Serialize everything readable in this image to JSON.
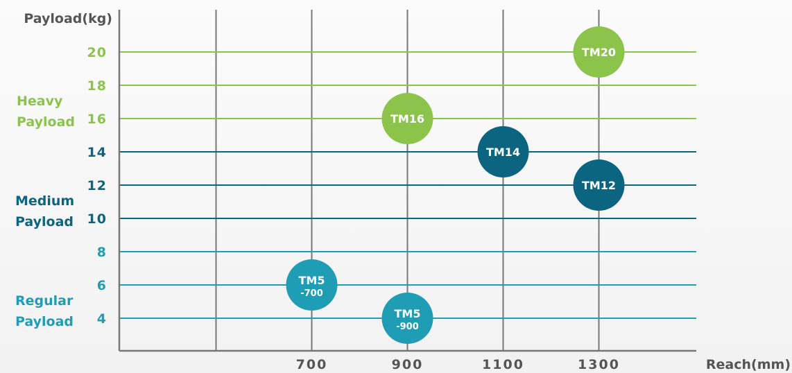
{
  "chart_data": {
    "type": "scatter",
    "ylabel": "Payload(kg)",
    "xlabel": "Reach(mm)",
    "xlim": [
      500,
      1500
    ],
    "ylim": [
      2,
      22
    ],
    "x_ticks": [
      700,
      900,
      1100,
      1300
    ],
    "y_ticks": [
      4,
      6,
      8,
      10,
      12,
      14,
      16,
      18,
      20
    ],
    "grid": true,
    "categories": [
      {
        "name_lines": [
          "Heavy",
          "Payload"
        ],
        "range": [
          16,
          20
        ],
        "color": "#8cc34a"
      },
      {
        "name_lines": [
          "Medium",
          "Payload"
        ],
        "range": [
          10,
          14
        ],
        "color": "#0b6480"
      },
      {
        "name_lines": [
          "Regular",
          "Payload"
        ],
        "range": [
          4,
          8
        ],
        "color": "#1e9db5"
      }
    ],
    "points": [
      {
        "label_lines": [
          "TM20"
        ],
        "x": 1300,
        "y": 20,
        "color": "#8cc34a"
      },
      {
        "label_lines": [
          "TM16"
        ],
        "x": 900,
        "y": 16,
        "color": "#8cc34a"
      },
      {
        "label_lines": [
          "TM14"
        ],
        "x": 1100,
        "y": 14,
        "color": "#0b6480"
      },
      {
        "label_lines": [
          "TM12"
        ],
        "x": 1300,
        "y": 12,
        "color": "#0b6480"
      },
      {
        "label_lines": [
          "TM5",
          "-700"
        ],
        "x": 700,
        "y": 6,
        "color": "#1e9db5"
      },
      {
        "label_lines": [
          "TM5",
          "-900"
        ],
        "x": 900,
        "y": 4,
        "color": "#1e9db5"
      }
    ]
  },
  "colors": {
    "axis": "#777777",
    "label": "#555555",
    "point_text": "#ffffff"
  }
}
